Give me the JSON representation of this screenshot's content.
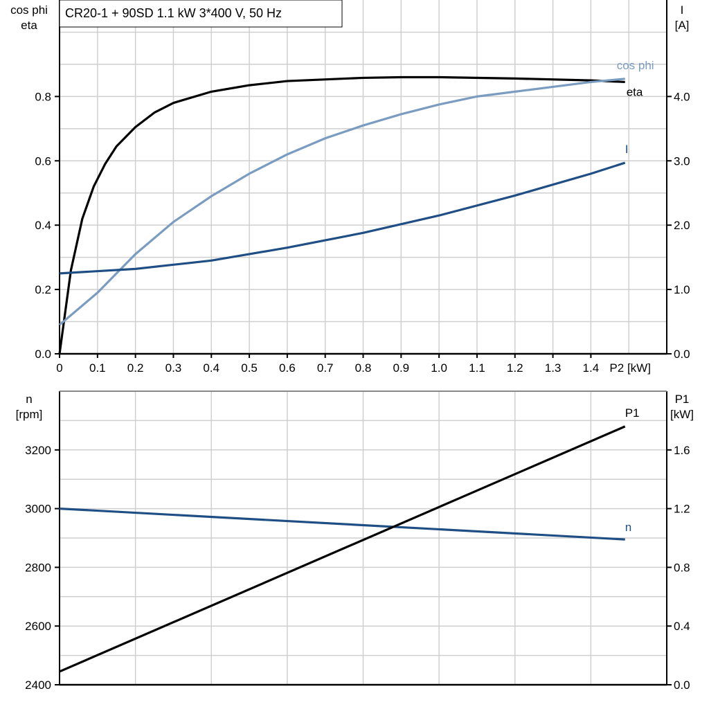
{
  "chart_data": [
    {
      "type": "line",
      "title": "CR20-1 + 90SD   1.1 kW   3*400 V, 50 Hz",
      "xlabel": "P2 [kW]",
      "ylabel_left": [
        "cos phi",
        "eta"
      ],
      "ylabel_right": [
        "I",
        "[A]"
      ],
      "xlim": [
        0,
        1.6
      ],
      "ylim_left": [
        0,
        1.1
      ],
      "ylim_right": [
        0,
        5.5
      ],
      "x_ticks": [
        "0",
        "0.1",
        "0.2",
        "0.3",
        "0.4",
        "0.5",
        "0.6",
        "0.7",
        "0.8",
        "0.9",
        "1.0",
        "1.1",
        "1.2",
        "1.3",
        "1.4"
      ],
      "y_ticks_left": [
        "0.0",
        "0.2",
        "0.4",
        "0.6",
        "0.8"
      ],
      "y_ticks_right": [
        "0.0",
        "1.0",
        "2.0",
        "3.0",
        "4.0"
      ],
      "grid": true,
      "series": [
        {
          "name": "eta",
          "axis": "left",
          "color": "#000000",
          "x": [
            0,
            0.03,
            0.06,
            0.09,
            0.12,
            0.15,
            0.2,
            0.25,
            0.3,
            0.4,
            0.5,
            0.6,
            0.8,
            0.9,
            1.0,
            1.2,
            1.4,
            1.49
          ],
          "y": [
            0,
            0.26,
            0.42,
            0.52,
            0.59,
            0.645,
            0.705,
            0.75,
            0.78,
            0.815,
            0.835,
            0.848,
            0.858,
            0.86,
            0.86,
            0.856,
            0.85,
            0.845
          ]
        },
        {
          "name": "cos phi",
          "axis": "left",
          "color": "#7a9cc0",
          "x": [
            0,
            0.1,
            0.2,
            0.3,
            0.4,
            0.5,
            0.6,
            0.7,
            0.8,
            0.9,
            1.0,
            1.1,
            1.2,
            1.3,
            1.4,
            1.49
          ],
          "y": [
            0.09,
            0.19,
            0.31,
            0.41,
            0.49,
            0.56,
            0.62,
            0.67,
            0.71,
            0.745,
            0.775,
            0.8,
            0.815,
            0.83,
            0.845,
            0.855
          ]
        },
        {
          "name": "I",
          "axis": "right",
          "color": "#1f4e85",
          "x": [
            0,
            0.2,
            0.4,
            0.6,
            0.8,
            1.0,
            1.2,
            1.4,
            1.49
          ],
          "y": [
            1.25,
            1.32,
            1.45,
            1.65,
            1.88,
            2.15,
            2.46,
            2.8,
            2.97
          ]
        }
      ]
    },
    {
      "type": "line",
      "xlim": [
        0,
        1.6
      ],
      "ylabel_left": [
        "n",
        "[rpm]"
      ],
      "ylabel_right": [
        "P1",
        "[kW]"
      ],
      "ylim_left": [
        2400,
        3400
      ],
      "ylim_right": [
        0,
        2.0
      ],
      "y_ticks_left": [
        "2400",
        "2600",
        "2800",
        "3000",
        "3200"
      ],
      "y_ticks_right": [
        "0.0",
        "0.4",
        "0.8",
        "1.2",
        "1.6"
      ],
      "grid": true,
      "series": [
        {
          "name": "n",
          "axis": "left",
          "color": "#1f4e85",
          "x": [
            0,
            1.49
          ],
          "y": [
            3000,
            2895
          ]
        },
        {
          "name": "P1",
          "axis": "right",
          "color": "#000000",
          "x": [
            0,
            1.49
          ],
          "y": [
            0.09,
            1.76
          ]
        }
      ]
    }
  ]
}
